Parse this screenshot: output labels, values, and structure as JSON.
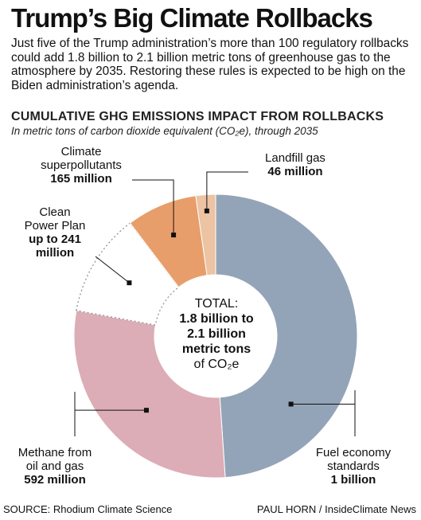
{
  "title": "Trump’s Big Climate Rollbacks",
  "intro": "Just five of the Trump administration’s more than 100 regulatory rollbacks could add 1.8 billion to 2.1 billion metric tons of greenhouse gas to the atmosphere by 2035. Restoring these rules is expected to be high on the Biden administration’s agenda.",
  "section_heading": "CUMULATIVE GHG EMISSIONS IMPACT FROM ROLLBACKS",
  "subheading": "In metric tons of carbon dioxide equivalent (CO₂e), through 2035",
  "center": {
    "line1": "TOTAL:",
    "line2": "1.8 billion to",
    "line3": "2.1 billion",
    "line4": "metric tons",
    "line5": "of CO₂e"
  },
  "chart_data": {
    "type": "pie",
    "style": "donut",
    "unit": "metric tons CO₂e",
    "slices": [
      {
        "name": "Fuel economy standards",
        "value_text": "1 billion",
        "value": 1000000000,
        "color": "#94a4b8",
        "outline": "solid"
      },
      {
        "name": "Methane from oil and gas",
        "value_text": "592 million",
        "value": 592000000,
        "color": "#dcadb6",
        "outline": "solid"
      },
      {
        "name": "Clean Power Plan",
        "value_text": "up to 241 million",
        "value": 241000000,
        "color": "#ffffff",
        "outline": "dotted"
      },
      {
        "name": "Climate superpollutants",
        "value_text": "165 million",
        "value": 165000000,
        "color": "#e89e6a",
        "outline": "solid"
      },
      {
        "name": "Landfill gas",
        "value_text": "46 million",
        "value": 46000000,
        "color": "#ecc3a3",
        "outline": "solid"
      }
    ],
    "labels": {
      "fuel": {
        "line1": "Fuel economy",
        "line2": "standards",
        "value": "1 billion"
      },
      "methane": {
        "line1": "Methane from",
        "line2": "oil and gas",
        "value": "592 million"
      },
      "cpp": {
        "line1": "Clean",
        "line2": "Power Plan",
        "value1": "up to 241",
        "value2": "million"
      },
      "super": {
        "line1": "Climate",
        "line2": "superpollutants",
        "value": "165 million"
      },
      "landfill": {
        "line1": "Landfill gas",
        "value": "46 million"
      }
    }
  },
  "footer": {
    "source": "SOURCE: Rhodium Climate Science",
    "credit": "PAUL HORN / InsideClimate News"
  }
}
